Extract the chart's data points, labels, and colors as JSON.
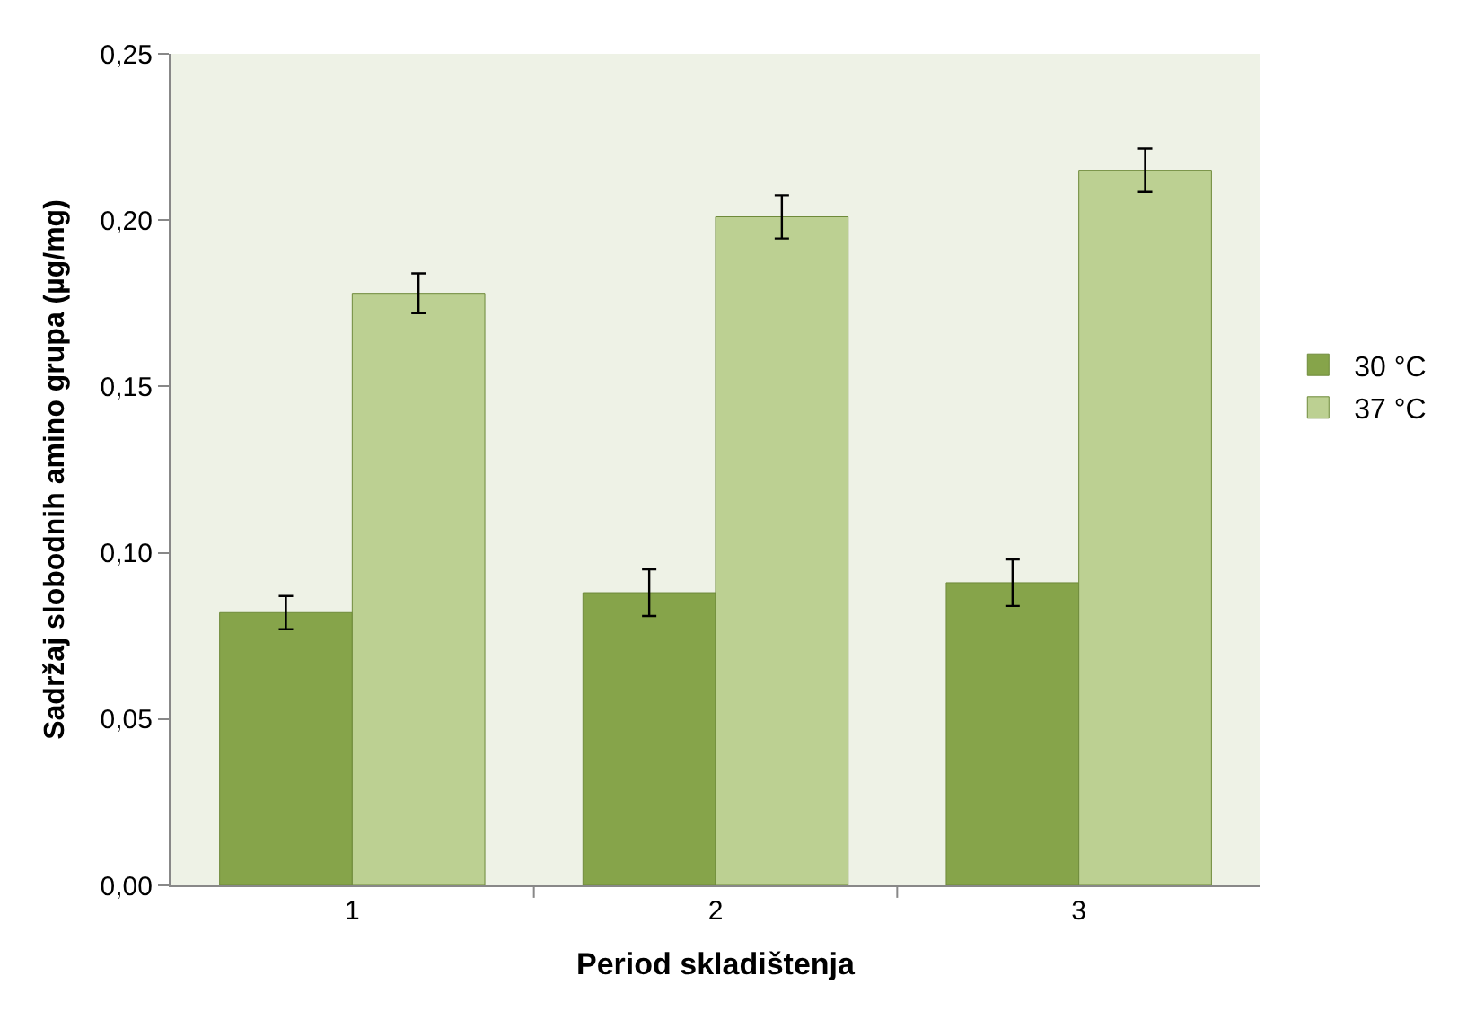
{
  "chart_data": {
    "type": "bar",
    "xlabel": "Period skladištenja",
    "ylabel": "Sadržaj slobodnih amino grupa (µg/mg)",
    "categories": [
      "1",
      "2",
      "3"
    ],
    "series": [
      {
        "name": "30 °C",
        "color": "#86a44a",
        "values": [
          0.082,
          0.088,
          0.091
        ],
        "errors": [
          0.005,
          0.007,
          0.007
        ]
      },
      {
        "name": "37 °C",
        "color": "#bcd092",
        "values": [
          0.178,
          0.201,
          0.215
        ],
        "errors": [
          0.006,
          0.0065,
          0.0065
        ]
      }
    ],
    "ylim": [
      0,
      0.25
    ],
    "yticks": [
      {
        "value": 0,
        "label": "0,00"
      },
      {
        "value": 0.05,
        "label": "0,05"
      },
      {
        "value": 0.1,
        "label": "0,10"
      },
      {
        "value": 0.15,
        "label": "0,15"
      },
      {
        "value": 0.2,
        "label": "0,20"
      },
      {
        "value": 0.25,
        "label": "0,25"
      }
    ],
    "grid": false,
    "legend": "right"
  }
}
